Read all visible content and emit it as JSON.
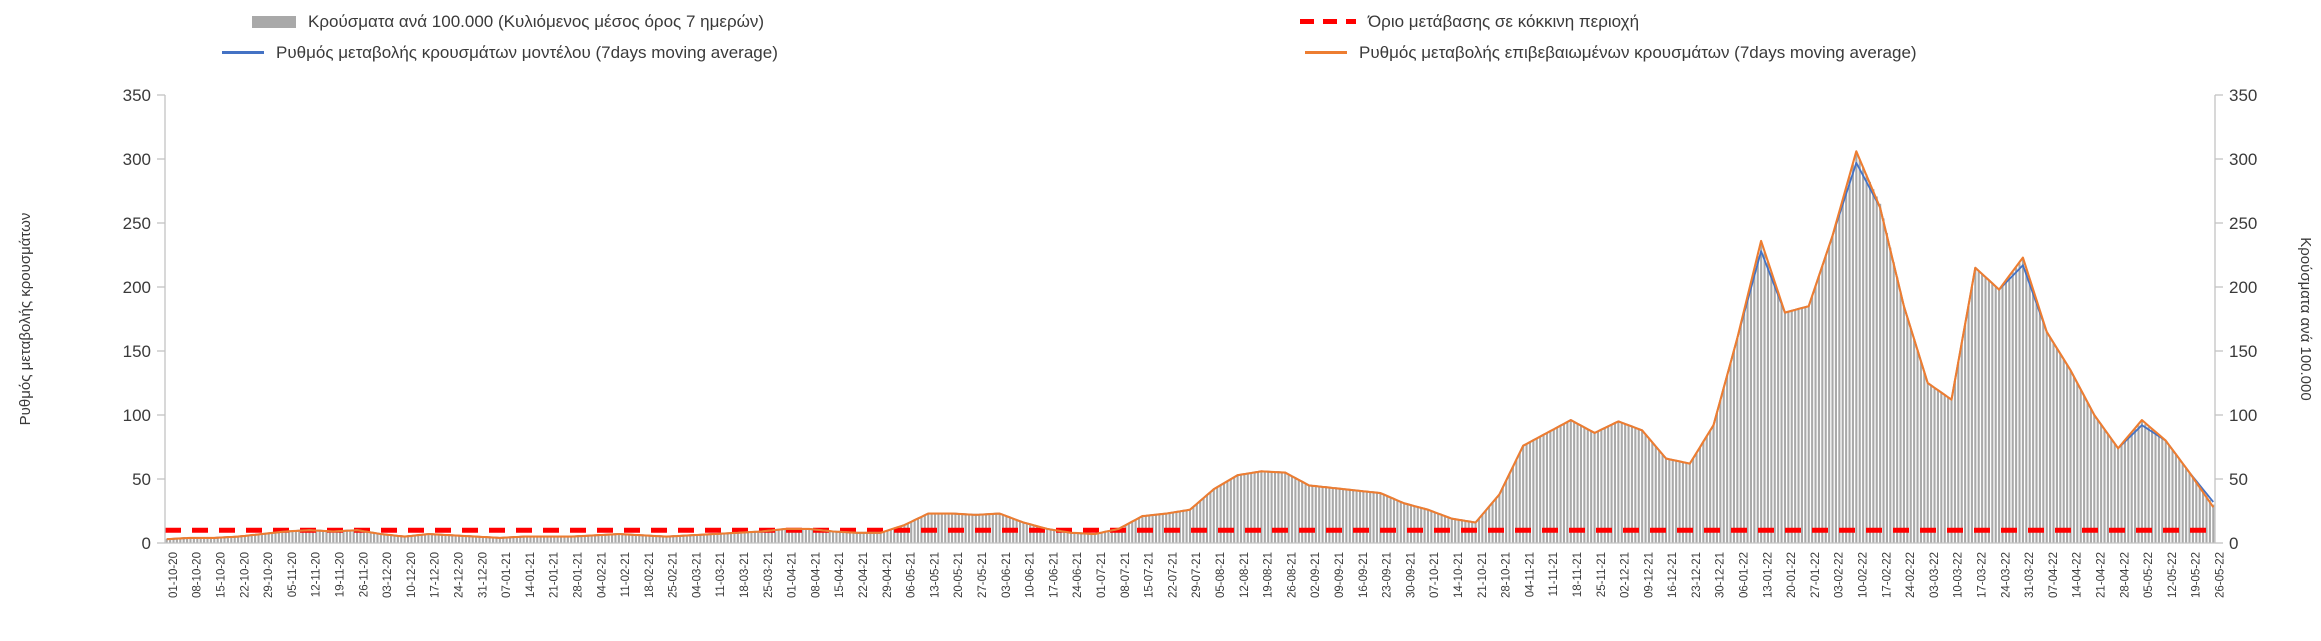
{
  "chart_data": {
    "type": "bar",
    "title": "",
    "legend_position": "top",
    "grid": false,
    "ylim": [
      0,
      350
    ],
    "y_ticks": [
      0,
      50,
      100,
      150,
      200,
      250,
      300,
      350
    ],
    "left_axis_label": "Ρυθμός μεταβολής κρουσμάτων",
    "right_axis_label": "Κρούσματα ανά 100.000",
    "categories": [
      "01-10-20",
      "08-10-20",
      "15-10-20",
      "22-10-20",
      "29-10-20",
      "05-11-20",
      "12-11-20",
      "19-11-20",
      "26-11-20",
      "03-12-20",
      "10-12-20",
      "17-12-20",
      "24-12-20",
      "31-12-20",
      "07-01-21",
      "14-01-21",
      "21-01-21",
      "28-01-21",
      "04-02-21",
      "11-02-21",
      "18-02-21",
      "25-02-21",
      "04-03-21",
      "11-03-21",
      "18-03-21",
      "25-03-21",
      "01-04-21",
      "08-04-21",
      "15-04-21",
      "22-04-21",
      "29-04-21",
      "06-05-21",
      "13-05-21",
      "20-05-21",
      "27-05-21",
      "03-06-21",
      "10-06-21",
      "17-06-21",
      "24-06-21",
      "01-07-21",
      "08-07-21",
      "15-07-21",
      "22-07-21",
      "29-07-21",
      "05-08-21",
      "12-08-21",
      "19-08-21",
      "26-08-21",
      "02-09-21",
      "09-09-21",
      "16-09-21",
      "23-09-21",
      "30-09-21",
      "07-10-21",
      "14-10-21",
      "21-10-21",
      "28-10-21",
      "04-11-21",
      "11-11-21",
      "18-11-21",
      "25-11-21",
      "02-12-21",
      "09-12-21",
      "16-12-21",
      "23-12-21",
      "30-12-21",
      "06-01-22",
      "13-01-22",
      "20-01-22",
      "27-01-22",
      "03-02-22",
      "10-02-22",
      "17-02-22",
      "24-02-22",
      "03-03-22",
      "10-03-22",
      "17-03-22",
      "24-03-22",
      "31-03-22",
      "07-04-22",
      "14-04-22",
      "21-04-22",
      "28-04-22",
      "05-05-22",
      "12-05-22",
      "19-05-22",
      "26-05-22"
    ],
    "series": [
      {
        "name": "Κρούσματα ανά 100.000 (Κυλιόμενος μέσος όρος 7 ημερών)",
        "type": "bar",
        "color": "#a9a9a9",
        "values": [
          3,
          4,
          4,
          5,
          7,
          9,
          10,
          9,
          10,
          7,
          5,
          7,
          6,
          5,
          4,
          5,
          5,
          5,
          6,
          7,
          6,
          5,
          6,
          7,
          8,
          9,
          11,
          11,
          9,
          8,
          8,
          14,
          23,
          23,
          22,
          23,
          16,
          11,
          8,
          7,
          11,
          21,
          23,
          26,
          42,
          53,
          56,
          55,
          45,
          43,
          41,
          39,
          31,
          26,
          19,
          16,
          38,
          76,
          86,
          96,
          86,
          95,
          88,
          66,
          62,
          92,
          160,
          235,
          180,
          185,
          240,
          305,
          265,
          185,
          125,
          112,
          215,
          198,
          222,
          165,
          135,
          100,
          74,
          95,
          80,
          55,
          30
        ]
      },
      {
        "name": "Ρυθμός μεταβολής κρουσμάτων μοντέλου (7days moving average)",
        "type": "line",
        "color": "#4472c4",
        "values": [
          3,
          4,
          4,
          5,
          7,
          9,
          10,
          9,
          10,
          7,
          5,
          7,
          6,
          5,
          4,
          5,
          5,
          5,
          6,
          7,
          6,
          5,
          6,
          7,
          8,
          9,
          11,
          11,
          9,
          8,
          8,
          14,
          23,
          23,
          22,
          23,
          16,
          11,
          8,
          7,
          11,
          21,
          23,
          26,
          42,
          53,
          56,
          55,
          45,
          43,
          41,
          39,
          31,
          26,
          19,
          16,
          38,
          76,
          86,
          96,
          86,
          95,
          88,
          66,
          62,
          92,
          160,
          228,
          180,
          185,
          240,
          297,
          262,
          185,
          125,
          112,
          215,
          198,
          217,
          165,
          135,
          100,
          74,
          92,
          80,
          55,
          32
        ]
      },
      {
        "name": "Ρυθμός μεταβολής επιβεβαιωμένων κρουσμάτων (7days moving average)",
        "type": "line",
        "color": "#ed7d31",
        "values": [
          3,
          4,
          4,
          5,
          7,
          9,
          10,
          9,
          10,
          7,
          5,
          7,
          6,
          5,
          4,
          5,
          5,
          5,
          6,
          7,
          6,
          5,
          6,
          7,
          8,
          9,
          11,
          11,
          9,
          8,
          8,
          14,
          23,
          23,
          22,
          23,
          16,
          11,
          8,
          7,
          11,
          21,
          23,
          26,
          42,
          53,
          56,
          55,
          45,
          43,
          41,
          39,
          31,
          26,
          19,
          16,
          38,
          76,
          86,
          96,
          86,
          95,
          88,
          66,
          62,
          92,
          160,
          236,
          180,
          185,
          240,
          306,
          262,
          185,
          125,
          112,
          215,
          198,
          223,
          165,
          135,
          100,
          74,
          96,
          80,
          55,
          28
        ]
      },
      {
        "name": "Όριο μετάβασης σε κόκκινη περιοχή",
        "type": "threshold",
        "color": "#ff0000",
        "value": 10
      }
    ]
  }
}
